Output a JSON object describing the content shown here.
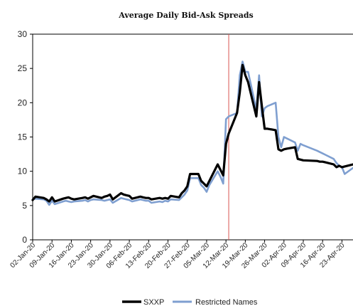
{
  "chart_data": {
    "type": "line",
    "title": "Average Daily Bid-Ask Spreads",
    "xlabel": "",
    "ylabel": "",
    "ylim": [
      0,
      30
    ],
    "yticks": [
      0,
      5,
      10,
      15,
      20,
      25,
      30
    ],
    "xlim": [
      "2020-01-02",
      "2020-04-27"
    ],
    "xticks": [
      "02-Jan-20",
      "09-Jan-20",
      "16-Jan-20",
      "23-Jan-20",
      "30-Jan-20",
      "06-Feb-20",
      "13-Feb-20",
      "20-Feb-20",
      "27-Feb-20",
      "05-Mar-20",
      "12-Mar-20",
      "19-Mar-20",
      "26-Mar-20",
      "02-Apr-20",
      "09-Apr-20",
      "16-Apr-20",
      "23-Apr-20"
    ],
    "grid": false,
    "legend": "bottom",
    "reference_line": {
      "x": "2020-03-13",
      "color": "#d9534f"
    },
    "series": [
      {
        "name": "SXXP",
        "color": "#000000",
        "points": [
          [
            "2020-01-02",
            5.8
          ],
          [
            "2020-01-03",
            6.3
          ],
          [
            "2020-01-06",
            6.1
          ],
          [
            "2020-01-07",
            5.9
          ],
          [
            "2020-01-08",
            5.6
          ],
          [
            "2020-01-09",
            6.2
          ],
          [
            "2020-01-10",
            5.6
          ],
          [
            "2020-01-13",
            6.0
          ],
          [
            "2020-01-14",
            6.1
          ],
          [
            "2020-01-15",
            6.2
          ],
          [
            "2020-01-16",
            6.0
          ],
          [
            "2020-01-17",
            5.9
          ],
          [
            "2020-01-20",
            6.1
          ],
          [
            "2020-01-21",
            6.2
          ],
          [
            "2020-01-22",
            6.0
          ],
          [
            "2020-01-23",
            6.2
          ],
          [
            "2020-01-24",
            6.4
          ],
          [
            "2020-01-27",
            6.1
          ],
          [
            "2020-01-28",
            6.3
          ],
          [
            "2020-01-29",
            6.4
          ],
          [
            "2020-01-30",
            6.6
          ],
          [
            "2020-01-31",
            5.9
          ],
          [
            "2020-02-03",
            6.8
          ],
          [
            "2020-02-04",
            6.6
          ],
          [
            "2020-02-05",
            6.5
          ],
          [
            "2020-02-06",
            6.4
          ],
          [
            "2020-02-07",
            6.0
          ],
          [
            "2020-02-10",
            6.3
          ],
          [
            "2020-02-11",
            6.2
          ],
          [
            "2020-02-12",
            6.1
          ],
          [
            "2020-02-13",
            6.1
          ],
          [
            "2020-02-14",
            5.9
          ],
          [
            "2020-02-17",
            6.1
          ],
          [
            "2020-02-18",
            6.0
          ],
          [
            "2020-02-19",
            6.1
          ],
          [
            "2020-02-20",
            6.0
          ],
          [
            "2020-02-21",
            6.4
          ],
          [
            "2020-02-24",
            6.2
          ],
          [
            "2020-02-25",
            6.8
          ],
          [
            "2020-02-26",
            7.2
          ],
          [
            "2020-02-27",
            7.8
          ],
          [
            "2020-02-28",
            9.6
          ],
          [
            "2020-03-02",
            9.6
          ],
          [
            "2020-03-03",
            8.6
          ],
          [
            "2020-03-04",
            8.2
          ],
          [
            "2020-03-05",
            7.8
          ],
          [
            "2020-03-06",
            8.6
          ],
          [
            "2020-03-09",
            11.0
          ],
          [
            "2020-03-10",
            10.2
          ],
          [
            "2020-03-11",
            9.4
          ],
          [
            "2020-03-12",
            14.0
          ],
          [
            "2020-03-13",
            15.5
          ],
          [
            "2020-03-16",
            18.5
          ],
          [
            "2020-03-17",
            21.5
          ],
          [
            "2020-03-18",
            25.5
          ],
          [
            "2020-03-19",
            24.0
          ],
          [
            "2020-03-20",
            23.0
          ],
          [
            "2020-03-23",
            18.0
          ],
          [
            "2020-03-24",
            23.0
          ],
          [
            "2020-03-25",
            19.5
          ],
          [
            "2020-03-26",
            16.2
          ],
          [
            "2020-03-27",
            16.2
          ],
          [
            "2020-03-30",
            16.0
          ],
          [
            "2020-03-31",
            13.2
          ],
          [
            "2020-04-01",
            13.0
          ],
          [
            "2020-04-02",
            13.2
          ],
          [
            "2020-04-03",
            13.3
          ],
          [
            "2020-04-06",
            13.5
          ],
          [
            "2020-04-07",
            11.8
          ],
          [
            "2020-04-08",
            11.7
          ],
          [
            "2020-04-09",
            11.6
          ],
          [
            "2020-04-14",
            11.5
          ],
          [
            "2020-04-15",
            11.4
          ],
          [
            "2020-04-16",
            11.4
          ],
          [
            "2020-04-17",
            11.3
          ],
          [
            "2020-04-20",
            11.0
          ],
          [
            "2020-04-21",
            10.6
          ],
          [
            "2020-04-22",
            10.8
          ],
          [
            "2020-04-23",
            10.6
          ],
          [
            "2020-04-24",
            10.7
          ],
          [
            "2020-04-27",
            11.0
          ]
        ]
      },
      {
        "name": "Restricted Names",
        "color": "#7f9fd0",
        "points": [
          [
            "2020-01-02",
            5.9
          ],
          [
            "2020-01-03",
            6.0
          ],
          [
            "2020-01-06",
            5.9
          ],
          [
            "2020-01-07",
            5.7
          ],
          [
            "2020-01-08",
            5.1
          ],
          [
            "2020-01-09",
            5.7
          ],
          [
            "2020-01-10",
            5.2
          ],
          [
            "2020-01-13",
            5.6
          ],
          [
            "2020-01-14",
            5.7
          ],
          [
            "2020-01-15",
            5.6
          ],
          [
            "2020-01-16",
            5.5
          ],
          [
            "2020-01-17",
            5.6
          ],
          [
            "2020-01-20",
            5.7
          ],
          [
            "2020-01-21",
            5.8
          ],
          [
            "2020-01-22",
            5.6
          ],
          [
            "2020-01-23",
            5.8
          ],
          [
            "2020-01-24",
            5.9
          ],
          [
            "2020-01-27",
            5.8
          ],
          [
            "2020-01-28",
            5.7
          ],
          [
            "2020-01-29",
            5.8
          ],
          [
            "2020-01-30",
            5.9
          ],
          [
            "2020-01-31",
            5.4
          ],
          [
            "2020-02-03",
            6.1
          ],
          [
            "2020-02-04",
            6.0
          ],
          [
            "2020-02-05",
            5.9
          ],
          [
            "2020-02-06",
            5.8
          ],
          [
            "2020-02-07",
            5.6
          ],
          [
            "2020-02-10",
            5.9
          ],
          [
            "2020-02-11",
            5.8
          ],
          [
            "2020-02-12",
            5.7
          ],
          [
            "2020-02-13",
            5.7
          ],
          [
            "2020-02-14",
            5.4
          ],
          [
            "2020-02-17",
            5.6
          ],
          [
            "2020-02-18",
            5.5
          ],
          [
            "2020-02-19",
            5.7
          ],
          [
            "2020-02-20",
            5.6
          ],
          [
            "2020-02-21",
            5.9
          ],
          [
            "2020-02-24",
            5.8
          ],
          [
            "2020-02-25",
            6.2
          ],
          [
            "2020-02-26",
            6.6
          ],
          [
            "2020-02-27",
            7.2
          ],
          [
            "2020-02-28",
            9.0
          ],
          [
            "2020-03-02",
            9.0
          ],
          [
            "2020-03-03",
            8.0
          ],
          [
            "2020-03-04",
            7.6
          ],
          [
            "2020-03-05",
            7.0
          ],
          [
            "2020-03-06",
            8.0
          ],
          [
            "2020-03-09",
            10.0
          ],
          [
            "2020-03-10",
            9.2
          ],
          [
            "2020-03-11",
            8.2
          ],
          [
            "2020-03-12",
            17.6
          ],
          [
            "2020-03-13",
            18.0
          ],
          [
            "2020-03-16",
            18.5
          ],
          [
            "2020-03-17",
            24.0
          ],
          [
            "2020-03-18",
            26.0
          ],
          [
            "2020-03-19",
            24.5
          ],
          [
            "2020-03-20",
            24.5
          ],
          [
            "2020-03-23",
            19.0
          ],
          [
            "2020-03-24",
            24.0
          ],
          [
            "2020-03-25",
            18.0
          ],
          [
            "2020-03-26",
            19.2
          ],
          [
            "2020-03-27",
            19.5
          ],
          [
            "2020-03-30",
            20.0
          ],
          [
            "2020-03-31",
            15.0
          ],
          [
            "2020-04-01",
            13.5
          ],
          [
            "2020-04-02",
            15.0
          ],
          [
            "2020-04-03",
            14.8
          ],
          [
            "2020-04-06",
            14.2
          ],
          [
            "2020-04-07",
            13.0
          ],
          [
            "2020-04-08",
            14.0
          ],
          [
            "2020-04-09",
            13.8
          ],
          [
            "2020-04-14",
            13.0
          ],
          [
            "2020-04-15",
            12.8
          ],
          [
            "2020-04-16",
            12.6
          ],
          [
            "2020-04-17",
            12.4
          ],
          [
            "2020-04-20",
            11.8
          ],
          [
            "2020-04-21",
            11.2
          ],
          [
            "2020-04-22",
            10.8
          ],
          [
            "2020-04-23",
            10.6
          ],
          [
            "2020-04-24",
            9.6
          ],
          [
            "2020-04-27",
            10.5
          ]
        ]
      }
    ]
  }
}
